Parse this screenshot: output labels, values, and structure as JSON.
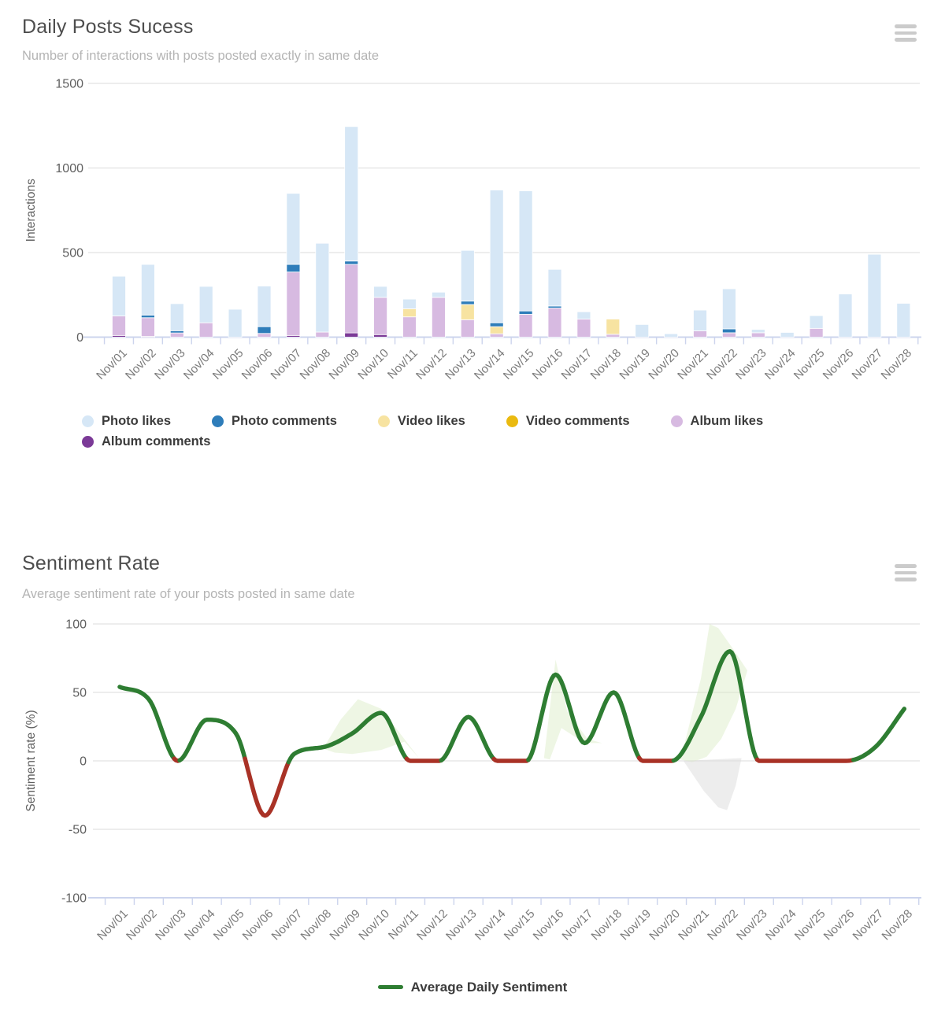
{
  "page_background": "#ffffff",
  "menu_icon_color": "#cbcbcb",
  "chart_data": [
    {
      "type": "bar",
      "stacked": true,
      "title": "Daily Posts Sucess",
      "subtitle": "Number of interactions with posts posted exactly in same date",
      "ylabel": "Interactions",
      "ylim": [
        0,
        1500
      ],
      "yticks": [
        0,
        500,
        1000,
        1500
      ],
      "grid": "horizontal",
      "legend_position": "bottom-left",
      "categories": [
        "Nov/01",
        "Nov/02",
        "Nov/03",
        "Nov/04",
        "Nov/05",
        "Nov/06",
        "Nov/07",
        "Nov/08",
        "Nov/09",
        "Nov/10",
        "Nov/11",
        "Nov/12",
        "Nov/13",
        "Nov/14",
        "Nov/15",
        "Nov/16",
        "Nov/17",
        "Nov/18",
        "Nov/19",
        "Nov/20",
        "Nov/21",
        "Nov/22",
        "Nov/23",
        "Nov/24",
        "Nov/25",
        "Nov/26",
        "Nov/27",
        "Nov/28"
      ],
      "series": [
        {
          "name": "Photo likes",
          "color": "#d6e7f6",
          "values": [
            235,
            300,
            160,
            215,
            165,
            240,
            420,
            525,
            795,
            65,
            57,
            31,
            300,
            785,
            710,
            217,
            43,
            0,
            75,
            20,
            123,
            237,
            20,
            28,
            75,
            255,
            490,
            200
          ]
        },
        {
          "name": "Photo comments",
          "color": "#2e7dba",
          "values": [
            0,
            15,
            13,
            0,
            0,
            40,
            45,
            0,
            20,
            0,
            0,
            0,
            20,
            23,
            20,
            12,
            0,
            0,
            0,
            0,
            0,
            23,
            0,
            0,
            0,
            0,
            0,
            0
          ]
        },
        {
          "name": "Video likes",
          "color": "#f7e3a1",
          "values": [
            0,
            0,
            0,
            0,
            0,
            0,
            0,
            0,
            0,
            0,
            48,
            0,
            90,
            42,
            0,
            0,
            0,
            90,
            0,
            0,
            0,
            0,
            0,
            0,
            0,
            0,
            0,
            0
          ]
        },
        {
          "name": "Video comments",
          "color": "#eaba10",
          "values": [
            0,
            0,
            0,
            0,
            0,
            0,
            0,
            0,
            0,
            0,
            0,
            0,
            0,
            0,
            0,
            0,
            0,
            0,
            0,
            0,
            0,
            0,
            0,
            0,
            0,
            0,
            0,
            0
          ]
        },
        {
          "name": "Album likes",
          "color": "#d7bae1",
          "values": [
            115,
            110,
            25,
            85,
            0,
            22,
            375,
            30,
            405,
            220,
            120,
            235,
            103,
            20,
            135,
            172,
            107,
            17,
            0,
            0,
            37,
            26,
            26,
            0,
            52,
            0,
            0,
            0
          ]
        },
        {
          "name": "Album comments",
          "color": "#7b3a97",
          "values": [
            10,
            5,
            0,
            0,
            0,
            0,
            10,
            0,
            25,
            15,
            0,
            0,
            0,
            0,
            0,
            0,
            0,
            0,
            0,
            0,
            0,
            0,
            0,
            0,
            0,
            0,
            0,
            0
          ]
        }
      ],
      "stack_order_bottom_to_top": [
        "Album comments",
        "Album likes",
        "Video likes",
        "Video comments",
        "Photo comments",
        "Photo likes"
      ]
    },
    {
      "type": "line",
      "title": "Sentiment Rate",
      "subtitle": "Average sentiment rate of your posts posted in same date",
      "ylabel": "Sentiment rate (%)",
      "ylim": [
        -100,
        100
      ],
      "yticks": [
        -100,
        -50,
        0,
        50,
        100
      ],
      "grid": "horizontal",
      "legend_position": "bottom-center",
      "categories": [
        "Nov/01",
        "Nov/02",
        "Nov/03",
        "Nov/04",
        "Nov/05",
        "Nov/06",
        "Nov/07",
        "Nov/08",
        "Nov/09",
        "Nov/10",
        "Nov/11",
        "Nov/12",
        "Nov/13",
        "Nov/14",
        "Nov/15",
        "Nov/16",
        "Nov/17",
        "Nov/18",
        "Nov/19",
        "Nov/20",
        "Nov/21",
        "Nov/22",
        "Nov/23",
        "Nov/24",
        "Nov/25",
        "Nov/26",
        "Nov/27",
        "Nov/28"
      ],
      "series": [
        {
          "name": "Average Daily Sentiment",
          "values": [
            54,
            45,
            0,
            30,
            20,
            -40,
            5,
            10,
            20,
            35,
            0,
            0,
            32,
            0,
            0,
            63,
            13,
            50,
            0,
            0,
            32,
            80,
            0,
            0,
            0,
            0,
            10,
            38
          ],
          "positive_color": "#2e7d32",
          "negative_color": "#a93226",
          "line_width": 5.5,
          "smoothing": "monotone"
        }
      ],
      "confidence_bands": [
        {
          "color": "#d9ecc3",
          "opacity": 0.45,
          "points": [
            [
              7,
              9
            ],
            [
              7.6,
              30
            ],
            [
              8.2,
              45
            ],
            [
              9,
              38
            ],
            [
              10.3,
              2
            ],
            [
              9.8,
              14
            ],
            [
              9,
              8
            ],
            [
              8,
              5
            ],
            [
              7.4,
              6
            ]
          ]
        },
        {
          "color": "#d9ecc3",
          "opacity": 0.45,
          "points": [
            [
              14.6,
              2
            ],
            [
              15.0,
              74
            ],
            [
              15.4,
              36
            ],
            [
              16.1,
              16
            ],
            [
              16.6,
              13
            ],
            [
              16,
              13
            ],
            [
              15.2,
              24
            ],
            [
              14.8,
              1
            ]
          ]
        },
        {
          "color": "#d9ecc3",
          "opacity": 0.45,
          "points": [
            [
              19.3,
              1
            ],
            [
              20.0,
              60
            ],
            [
              20.3,
              100
            ],
            [
              20.6,
              97
            ],
            [
              21.1,
              82
            ],
            [
              21.6,
              66
            ],
            [
              21.2,
              38
            ],
            [
              20.7,
              16
            ],
            [
              20.2,
              3
            ],
            [
              19.7,
              -1
            ]
          ]
        },
        {
          "color": "#dcdcdc",
          "opacity": 0.5,
          "points": [
            [
              19.4,
              0
            ],
            [
              20.1,
              -22
            ],
            [
              20.6,
              -34
            ],
            [
              20.9,
              -36
            ],
            [
              21.2,
              -18
            ],
            [
              21.4,
              2
            ]
          ]
        }
      ]
    }
  ],
  "style": {
    "axis_line_color": "#ccd4ed",
    "gridline_color": "#e7e7e7",
    "ytick_label_color": "#5f5f5f",
    "xtick_label_color": "#7a7a7a",
    "axis_title_color": "#5f5f5f",
    "legend_text_color": "#3b3b3b"
  }
}
